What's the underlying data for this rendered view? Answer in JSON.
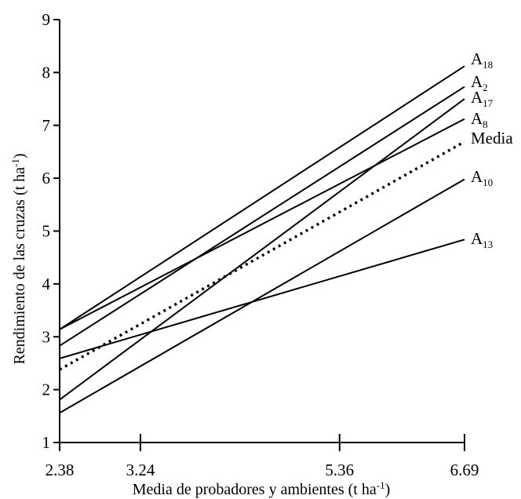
{
  "chart_data": {
    "type": "line",
    "xlabel": "Media de probadores y ambientes (t ha",
    "xlabel_sup": "-1",
    "xlabel_end": ")",
    "ylabel": "Rendimiento de las cruzas (t ha",
    "ylabel_sup": "-1",
    "ylabel_end": ")",
    "xlim": [
      2.38,
      6.69
    ],
    "ylim": [
      1,
      9
    ],
    "x_ticks": [
      2.38,
      3.24,
      5.36,
      6.69
    ],
    "x_tick_labels": [
      "2.38",
      "3.24",
      "5.36",
      "6.69"
    ],
    "y_ticks": [
      1,
      2,
      3,
      4,
      5,
      6,
      7,
      8,
      9
    ],
    "y_tick_labels": [
      "1",
      "2",
      "3",
      "4",
      "5",
      "6",
      "7",
      "8",
      "9"
    ],
    "grid": false,
    "series": [
      {
        "name": "A",
        "sub": "18",
        "x": [
          2.38,
          6.69
        ],
        "y": [
          3.14,
          8.12
        ],
        "style": "solid"
      },
      {
        "name": "A",
        "sub": "2",
        "x": [
          2.38,
          6.69
        ],
        "y": [
          2.83,
          7.73
        ],
        "style": "solid"
      },
      {
        "name": "A",
        "sub": "17",
        "x": [
          2.38,
          6.69
        ],
        "y": [
          1.81,
          7.5
        ],
        "style": "solid"
      },
      {
        "name": "A",
        "sub": "8",
        "x": [
          2.38,
          6.69
        ],
        "y": [
          3.14,
          7.12
        ],
        "style": "solid"
      },
      {
        "name": "Media",
        "sub": "",
        "x": [
          2.38,
          6.69
        ],
        "y": [
          2.38,
          6.69
        ],
        "style": "dotted"
      },
      {
        "name": "A",
        "sub": "10",
        "x": [
          2.38,
          6.69
        ],
        "y": [
          1.56,
          5.98
        ],
        "style": "solid"
      },
      {
        "name": "A",
        "sub": "13",
        "x": [
          2.38,
          6.69
        ],
        "y": [
          2.59,
          4.84
        ],
        "style": "solid"
      }
    ]
  }
}
